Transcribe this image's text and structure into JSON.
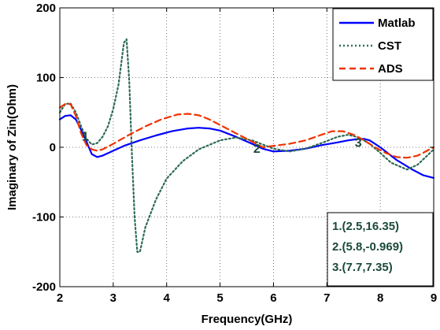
{
  "chart_data": {
    "type": "line",
    "title": "",
    "xlabel": "Frequency(GHz)",
    "ylabel": "Imaginary of Zin(Ohm)",
    "xlim": [
      2,
      9
    ],
    "ylim": [
      -200,
      200
    ],
    "xticks": [
      2,
      3,
      4,
      5,
      6,
      7,
      8,
      9
    ],
    "yticks": [
      -200,
      -100,
      0,
      100,
      200
    ],
    "xtick_labels": [
      "2",
      "3",
      "4",
      "5",
      "6",
      "7",
      "8",
      "9"
    ],
    "ytick_labels": [
      "-200",
      "-100",
      "0",
      "100",
      "200"
    ],
    "grid": true,
    "legend_position": "top-right",
    "series": [
      {
        "name": "Matlab",
        "color": "#0000ff",
        "style": "solid",
        "x": [
          2.0,
          2.1,
          2.2,
          2.3,
          2.4,
          2.5,
          2.6,
          2.7,
          2.8,
          3.0,
          3.2,
          3.5,
          3.8,
          4.1,
          4.4,
          4.6,
          4.8,
          5.0,
          5.3,
          5.6,
          5.8,
          6.0,
          6.3,
          6.6,
          6.9,
          7.2,
          7.4,
          7.6,
          7.7,
          7.8,
          8.0,
          8.3,
          8.6,
          8.8,
          9.0
        ],
        "y": [
          40,
          45,
          46,
          40,
          25,
          8,
          -10,
          -14,
          -12,
          -5,
          2,
          10,
          17,
          23,
          27,
          28,
          27,
          24,
          15,
          5,
          -2,
          -6,
          -5,
          -2,
          3,
          7,
          10,
          12,
          12,
          10,
          0,
          -18,
          -32,
          -40,
          -44
        ]
      },
      {
        "name": "CST",
        "color": "#2e6b55",
        "style": "dotted",
        "x": [
          2.0,
          2.1,
          2.2,
          2.3,
          2.4,
          2.5,
          2.6,
          2.7,
          2.8,
          2.9,
          3.0,
          3.1,
          3.2,
          3.25,
          3.3,
          3.35,
          3.4,
          3.45,
          3.5,
          3.6,
          3.8,
          4.0,
          4.3,
          4.6,
          5.0,
          5.3,
          5.6,
          6.0,
          6.3,
          6.6,
          6.9,
          7.2,
          7.4,
          7.6,
          7.8,
          8.0,
          8.2,
          8.5,
          8.7,
          9.0
        ],
        "y": [
          50,
          62,
          63,
          50,
          30,
          12,
          4,
          6,
          15,
          30,
          55,
          90,
          150,
          155,
          95,
          -10,
          -100,
          -150,
          -150,
          -115,
          -75,
          -45,
          -20,
          -3,
          10,
          14,
          10,
          -2,
          -6,
          -2,
          6,
          15,
          18,
          14,
          5,
          -8,
          -22,
          -32,
          -25,
          -3
        ]
      },
      {
        "name": "ADS",
        "color": "#ee3300",
        "style": "dashed",
        "x": [
          2.0,
          2.1,
          2.2,
          2.3,
          2.4,
          2.5,
          2.6,
          2.7,
          2.8,
          3.0,
          3.3,
          3.6,
          3.9,
          4.2,
          4.4,
          4.6,
          4.8,
          5.0,
          5.3,
          5.6,
          5.8,
          6.0,
          6.3,
          6.6,
          6.9,
          7.1,
          7.3,
          7.5,
          7.7,
          7.9,
          8.1,
          8.3,
          8.5,
          8.7,
          9.0
        ],
        "y": [
          57,
          62,
          62,
          45,
          20,
          3,
          -3,
          -5,
          -3,
          5,
          18,
          30,
          40,
          47,
          48,
          46,
          40,
          32,
          20,
          8,
          0,
          2,
          5,
          10,
          18,
          23,
          23,
          18,
          10,
          0,
          -8,
          -14,
          -15,
          -12,
          0
        ]
      }
    ],
    "annotations": {
      "box_lines": [
        "1.(2.5,16.35)",
        "2.(5.8,-0.969)",
        "3.(7.7,7.35)"
      ],
      "point_markers": [
        {
          "label": "1",
          "x": 2.5,
          "y": 16.35
        },
        {
          "label": "2",
          "x": 5.8,
          "y": -0.969
        },
        {
          "label": "3",
          "x": 7.7,
          "y": 7.35
        }
      ],
      "text_color": "#1a4a3a"
    }
  }
}
